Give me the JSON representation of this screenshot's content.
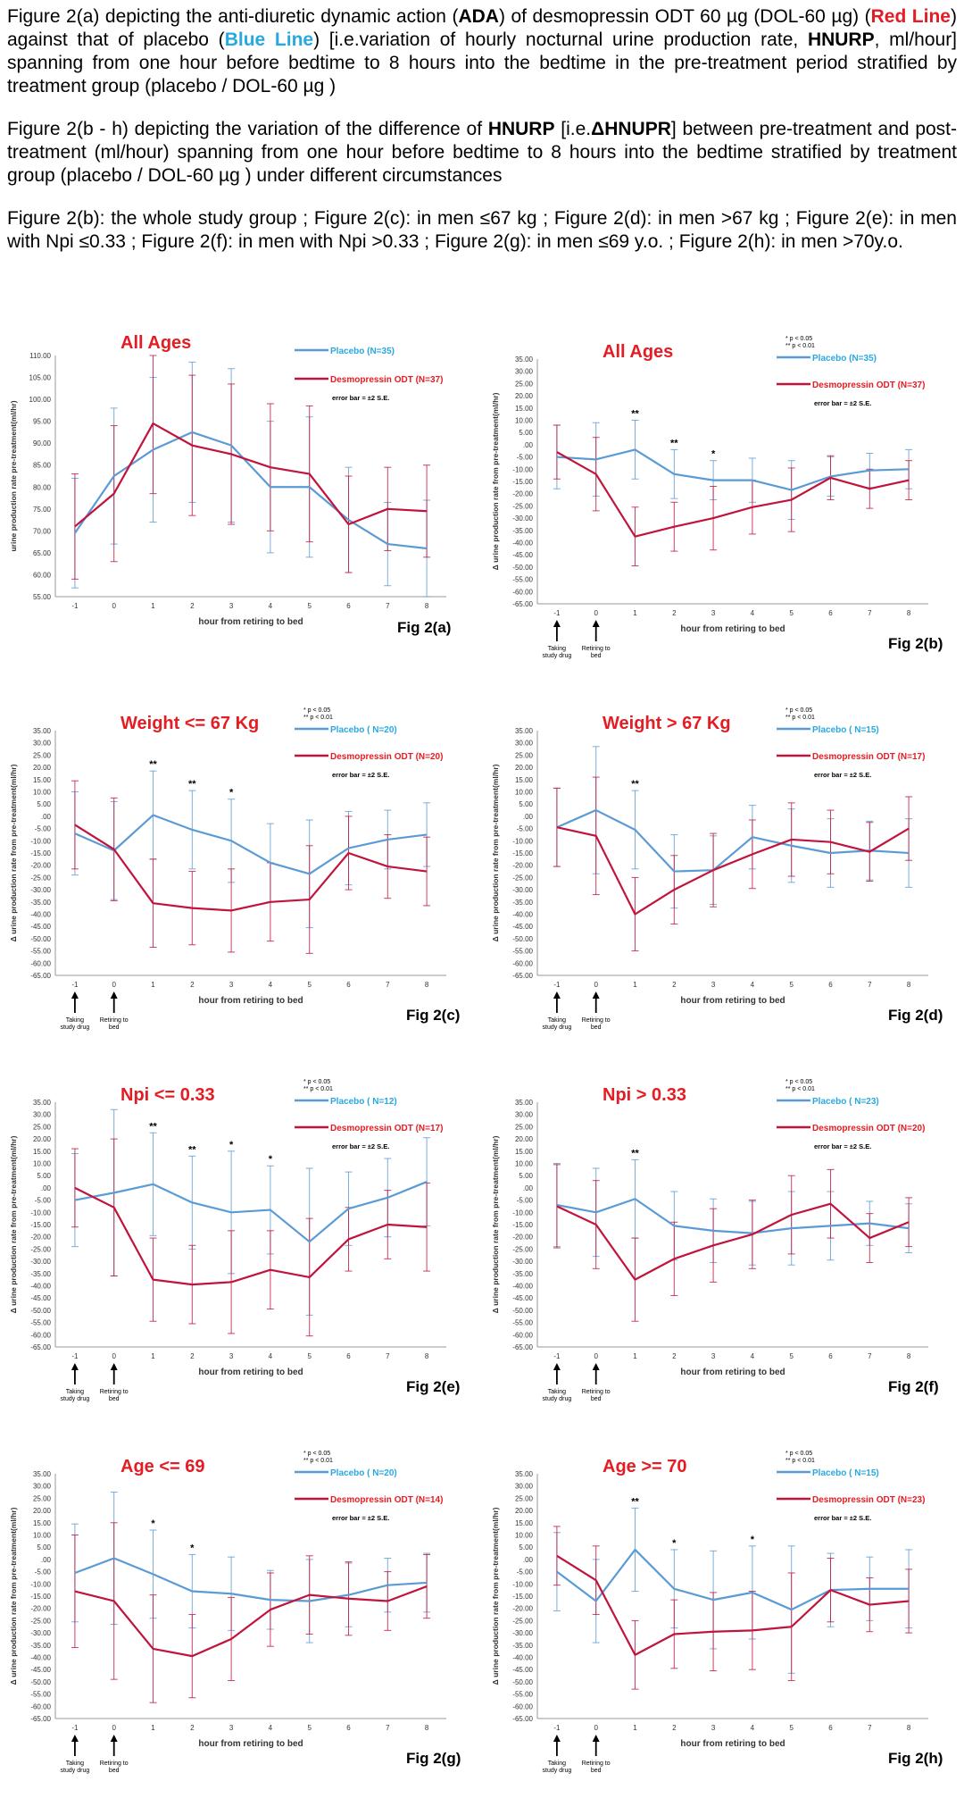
{
  "intro": {
    "p1": [
      "Figure 2(a) depicting the anti-diuretic dynamic action (",
      "ADA",
      ") of desmopressin ODT 60 µg (DOL-60 µg) (",
      "Red Line",
      ") against that of placebo (",
      "Blue Line",
      ") [i.e.variation of hourly nocturnal urine production rate, ",
      "HNURP",
      ", ml/hour] spanning from one hour before bedtime to 8 hours into the bedtime in the pre-treatment period stratified by treatment group (placebo / DOL-60 µg )"
    ],
    "p2": [
      "Figure 2(b - h) depicting the variation of the difference of ",
      "HNURP",
      " [i.e.",
      "ΔHNUPR",
      "] between pre-treatment and post-treatment (ml/hour) spanning from one hour before bedtime to 8 hours into the bedtime stratified by treatment group (placebo / DOL-60 µg ) under different circumstances"
    ],
    "p3": "Figure 2(b): the whole study group ; Figure 2(c): in men ≤67 kg ; Figure 2(d): in men >67 kg ; Figure 2(e): in men with Npi ≤0.33 ; Figure 2(f): in men with Npi >0.33 ; Figure 2(g): in men ≤69 y.o. ; Figure 2(h): in men >70y.o."
  },
  "colors": {
    "placebo": "#5b9bd5",
    "desmo": "#c0143c",
    "title": "#e41c23"
  },
  "common": {
    "xlabel": "hour from retiring to bed",
    "ylabel_a": "urine production rate pre-treatment(ml/hr)",
    "ylabel_delta": "Δ urine production rate from pre-treatment(ml/hr)",
    "sig1": "*  p < 0.05",
    "sig2": "** p < 0.01",
    "errorbar": "error bar = ±2 S.E.",
    "arrow1": [
      "Taking",
      "study drug"
    ],
    "arrow2": [
      "Retiring to",
      "bed"
    ]
  },
  "chart_data": [
    {
      "id": "a",
      "type": "line",
      "fig_label": "Fig 2(a)",
      "title": "All Ages",
      "placebo_label": "Placebo (N=35)",
      "desmo_label": "Desmopressin ODT (N=37)",
      "x": [
        -1,
        0,
        1,
        2,
        3,
        4,
        5,
        6,
        7,
        8
      ],
      "ylim": [
        55,
        110
      ],
      "yticks": [
        110,
        105,
        100,
        95,
        90,
        85,
        80,
        75,
        70,
        65,
        60,
        55
      ],
      "series": [
        {
          "name": "Placebo (N=35)",
          "values": [
            69.5,
            82.5,
            88.5,
            92.5,
            89.5,
            80,
            80,
            72.5,
            67,
            66
          ],
          "err": [
            12.5,
            15.5,
            16.5,
            16,
            17.5,
            15,
            16,
            12,
            9.5,
            11
          ]
        },
        {
          "name": "Desmopressin ODT (N=37)",
          "values": [
            71,
            78.5,
            94.5,
            89.5,
            87.5,
            84.5,
            83,
            71.5,
            75,
            74.5
          ],
          "err": [
            12,
            15.5,
            16,
            16,
            16,
            14.5,
            15.5,
            11,
            9.5,
            10.5
          ]
        }
      ],
      "stars": [],
      "arrows": false
    },
    {
      "id": "b",
      "type": "line",
      "fig_label": "Fig 2(b)",
      "title": "All Ages",
      "placebo_label": "Placebo (N=35)",
      "desmo_label": "Desmopressin ODT (N=37)",
      "x": [
        -1,
        0,
        1,
        2,
        3,
        4,
        5,
        6,
        7,
        8
      ],
      "ylim": [
        -65,
        35
      ],
      "yticks": [
        35,
        30,
        25,
        20,
        15,
        10,
        5,
        0,
        -5,
        -10,
        -15,
        -20,
        -25,
        -30,
        -35,
        -40,
        -45,
        -50,
        -55,
        -60,
        -65
      ],
      "series": [
        {
          "name": "Placebo (N=35)",
          "values": [
            -5,
            -6,
            -2,
            -12,
            -14.5,
            -14.5,
            -18.5,
            -13,
            -10.5,
            -10
          ],
          "err": [
            13,
            15,
            12,
            10,
            8,
            9,
            12,
            8,
            7,
            8
          ]
        },
        {
          "name": "Desmopressin ODT (N=37)",
          "values": [
            -3,
            -12,
            -37.5,
            -33.5,
            -30,
            -25.5,
            -22.5,
            -13.5,
            -18,
            -14.5
          ],
          "err": [
            11,
            15,
            12,
            10,
            13,
            11,
            13,
            9,
            8,
            8
          ]
        }
      ],
      "stars": [
        {
          "x": 1,
          "t": "**"
        },
        {
          "x": 2,
          "t": "**"
        },
        {
          "x": 3,
          "t": "*"
        }
      ],
      "arrows": true
    },
    {
      "id": "c",
      "type": "line",
      "fig_label": "Fig 2(c)",
      "title": "Weight <= 67 Kg",
      "placebo_label": "Placebo ( N=20)",
      "desmo_label": "Desmopressin ODT (N=20)",
      "x": [
        -1,
        0,
        1,
        2,
        3,
        4,
        5,
        6,
        7,
        8
      ],
      "ylim": [
        -65,
        35
      ],
      "yticks": [
        35,
        30,
        25,
        20,
        15,
        10,
        5,
        0,
        -5,
        -10,
        -15,
        -20,
        -25,
        -30,
        -35,
        -40,
        -45,
        -50,
        -55,
        -60,
        -65
      ],
      "series": [
        {
          "name": "Placebo ( N=20)",
          "values": [
            -7,
            -14,
            0.5,
            -5.5,
            -10,
            -19,
            -23.5,
            -13,
            -9.5,
            -7.5
          ],
          "err": [
            17,
            20,
            18,
            16,
            17,
            16,
            22,
            15,
            12,
            13
          ]
        },
        {
          "name": "Desmopressin ODT (N=20)",
          "values": [
            -3.5,
            -13.5,
            -35.5,
            -37.5,
            -38.5,
            -35,
            -34,
            -15,
            -20.5,
            -22.5
          ],
          "err": [
            18,
            21,
            18,
            15,
            17,
            16,
            22,
            15,
            13,
            14
          ]
        }
      ],
      "stars": [
        {
          "x": 1,
          "t": "**"
        },
        {
          "x": 2,
          "t": "**"
        },
        {
          "x": 3,
          "t": "*"
        }
      ],
      "arrows": true
    },
    {
      "id": "d",
      "type": "line",
      "fig_label": "Fig 2(d)",
      "title": "Weight > 67 Kg",
      "placebo_label": "Placebo ( N=15)",
      "desmo_label": "Desmopressin ODT (N=17)",
      "x": [
        -1,
        0,
        1,
        2,
        3,
        4,
        5,
        6,
        7,
        8
      ],
      "ylim": [
        -65,
        35
      ],
      "yticks": [
        35,
        30,
        25,
        20,
        15,
        10,
        5,
        0,
        -5,
        -10,
        -15,
        -20,
        -25,
        -30,
        -35,
        -40,
        -45,
        -50,
        -55,
        -60,
        -65
      ],
      "series": [
        {
          "name": "Placebo ( N=15)",
          "values": [
            -4.5,
            2.5,
            -5.5,
            -22.5,
            -22,
            -8.5,
            -12,
            -15,
            -14,
            -15
          ],
          "err": [
            16,
            26,
            16,
            15,
            14,
            13,
            15,
            14,
            12,
            14
          ]
        },
        {
          "name": "Desmopressin ODT (N=17)",
          "values": [
            -4.5,
            -8,
            -40,
            -30,
            -22,
            -15.5,
            -9.5,
            -10.5,
            -14.5,
            -5
          ],
          "err": [
            16,
            24,
            15,
            14,
            15,
            14,
            15,
            13,
            12,
            13
          ]
        }
      ],
      "stars": [
        {
          "x": 1,
          "t": "**"
        }
      ],
      "arrows": true
    },
    {
      "id": "e",
      "type": "line",
      "fig_label": "Fig 2(e)",
      "title": "Npi <= 0.33",
      "placebo_label": "Placebo ( N=12)",
      "desmo_label": "Desmopressin ODT (N=17)",
      "x": [
        -1,
        0,
        1,
        2,
        3,
        4,
        5,
        6,
        7,
        8
      ],
      "ylim": [
        -65,
        35
      ],
      "yticks": [
        35,
        30,
        25,
        20,
        15,
        10,
        5,
        0,
        -5,
        -10,
        -15,
        -20,
        -25,
        -30,
        -35,
        -40,
        -45,
        -50,
        -55,
        -60,
        -65
      ],
      "series": [
        {
          "name": "Placebo ( N=12)",
          "values": [
            -5,
            -2,
            1.5,
            -6,
            -10,
            -9,
            -22,
            -8.5,
            -4,
            2.5
          ],
          "err": [
            19,
            34,
            21,
            19,
            25,
            18,
            30,
            15,
            16,
            18
          ]
        },
        {
          "name": "Desmopressin ODT (N=17)",
          "values": [
            0,
            -8,
            -37.5,
            -39.5,
            -38.5,
            -33.5,
            -36.5,
            -21,
            -15,
            -16
          ],
          "err": [
            16,
            28,
            17,
            16,
            21,
            16,
            24,
            13,
            14,
            18
          ]
        }
      ],
      "stars": [
        {
          "x": 1,
          "t": "**"
        },
        {
          "x": 2,
          "t": "**"
        },
        {
          "x": 3,
          "t": "*"
        },
        {
          "x": 4,
          "t": "*"
        }
      ],
      "arrows": true
    },
    {
      "id": "f",
      "type": "line",
      "fig_label": "Fig 2(f)",
      "title": "Npi >  0.33",
      "placebo_label": "Placebo ( N=23)",
      "desmo_label": "Desmopressin ODT (N=20)",
      "x": [
        -1,
        0,
        1,
        2,
        3,
        4,
        5,
        6,
        7,
        8
      ],
      "ylim": [
        -65,
        35
      ],
      "yticks": [
        35,
        30,
        25,
        20,
        15,
        10,
        5,
        0,
        -5,
        -10,
        -15,
        -20,
        -25,
        -30,
        -35,
        -40,
        -45,
        -50,
        -55,
        -60,
        -65
      ],
      "series": [
        {
          "name": "Placebo ( N=23)",
          "values": [
            -7,
            -10,
            -4.5,
            -15.5,
            -17.5,
            -18.5,
            -16.5,
            -15.5,
            -14.5,
            -16.5
          ],
          "err": [
            17,
            18,
            16,
            14,
            13,
            13,
            15,
            14,
            9,
            10
          ]
        },
        {
          "name": "Desmopressin ODT (N=20)",
          "values": [
            -7.5,
            -15,
            -37.5,
            -29,
            -23.5,
            -19,
            -11,
            -6.5,
            -20.5,
            -14
          ],
          "err": [
            17,
            18,
            17,
            15,
            15,
            14,
            16,
            14,
            10,
            10
          ]
        }
      ],
      "stars": [
        {
          "x": 1,
          "t": "**"
        }
      ],
      "arrows": true
    },
    {
      "id": "g",
      "type": "line",
      "fig_label": "Fig 2(g)",
      "title": "Age <= 69",
      "placebo_label": "Placebo ( N=20)",
      "desmo_label": "Desmopressin ODT (N=14)",
      "x": [
        -1,
        0,
        1,
        2,
        3,
        4,
        5,
        6,
        7,
        8
      ],
      "ylim": [
        -65,
        35
      ],
      "yticks": [
        35,
        30,
        25,
        20,
        15,
        10,
        5,
        0,
        -5,
        -10,
        -15,
        -20,
        -25,
        -30,
        -35,
        -40,
        -45,
        -50,
        -55,
        -60,
        -65
      ],
      "series": [
        {
          "name": "Placebo ( N=20)",
          "values": [
            -5.5,
            0.5,
            -6,
            -13,
            -14,
            -16.5,
            -17,
            -14.5,
            -10.5,
            -9.5
          ],
          "err": [
            20,
            27,
            18,
            15,
            15,
            12,
            17,
            13,
            11,
            12
          ]
        },
        {
          "name": "Desmopressin ODT (N=14)",
          "values": [
            -13,
            -17,
            -36.5,
            -39.5,
            -32.5,
            -20.5,
            -14.5,
            -16,
            -17,
            -11
          ],
          "err": [
            23,
            32,
            22,
            17,
            17,
            15,
            16,
            15,
            12,
            13
          ]
        }
      ],
      "stars": [
        {
          "x": 1,
          "t": "*"
        },
        {
          "x": 2,
          "t": "*"
        }
      ],
      "arrows": true
    },
    {
      "id": "h",
      "type": "line",
      "fig_label": "Fig 2(h)",
      "title": "Age >= 70",
      "placebo_label": "Placebo ( N=15)",
      "desmo_label": "Desmopressin ODT (N=23)",
      "x": [
        -1,
        0,
        1,
        2,
        3,
        4,
        5,
        6,
        7,
        8
      ],
      "ylim": [
        -65,
        35
      ],
      "yticks": [
        35,
        30,
        25,
        20,
        15,
        10,
        5,
        0,
        -5,
        -10,
        -15,
        -20,
        -25,
        -30,
        -35,
        -40,
        -45,
        -50,
        -55,
        -60,
        -65
      ],
      "series": [
        {
          "name": "Placebo ( N=15)",
          "values": [
            -5,
            -17,
            4,
            -12,
            -16.5,
            -13.5,
            -20.5,
            -12.5,
            -12,
            -12
          ],
          "err": [
            16,
            17,
            17,
            16,
            20,
            19,
            26,
            15,
            13,
            16
          ]
        },
        {
          "name": "Desmopressin ODT (N=23)",
          "values": [
            1.5,
            -8.5,
            -39,
            -30.5,
            -29.5,
            -29,
            -27.5,
            -12.5,
            -18.5,
            -17
          ],
          "err": [
            12,
            14,
            14,
            14,
            16,
            16,
            22,
            13,
            11,
            13
          ]
        }
      ],
      "stars": [
        {
          "x": 1,
          "t": "**"
        },
        {
          "x": 2,
          "t": "*"
        },
        {
          "x": 4,
          "t": "*"
        }
      ],
      "arrows": true
    }
  ]
}
